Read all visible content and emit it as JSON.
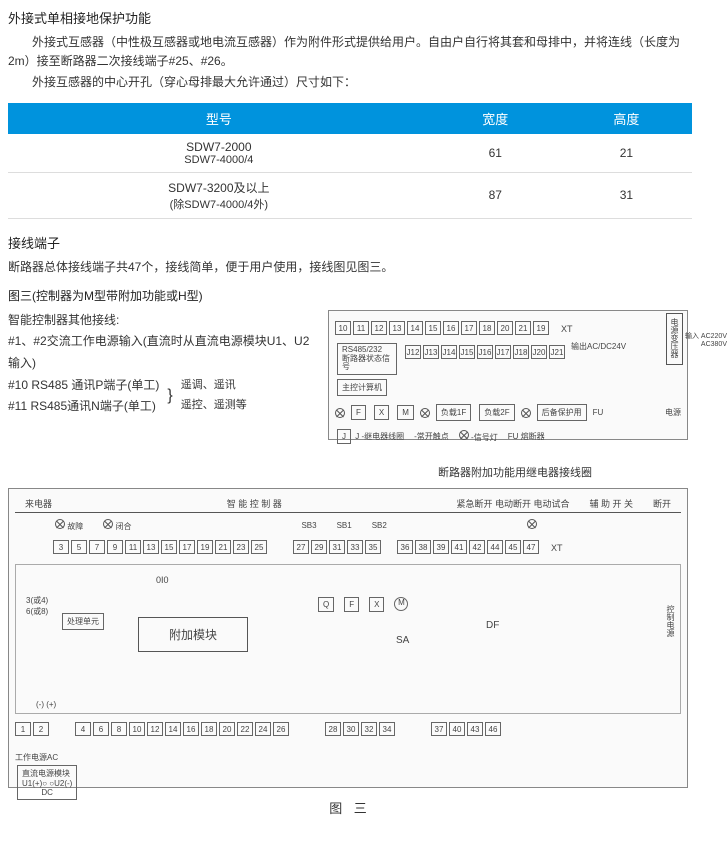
{
  "section1": {
    "title": "外接式单相接地保护功能",
    "para1": "外接式互感器（中性极互感器或地电流互感器）作为附件形式提供给用户。自由户自行将其套和母排中，并将连线（长度为2m）接至断路器二次接线端子#25、#26。",
    "para2": "外接互感器的中心开孔（穿心母排最大允许通过）尺寸如下："
  },
  "table1": {
    "headers": [
      "型号",
      "宽度",
      "高度"
    ],
    "rows": [
      {
        "model": "SDW7-2000",
        "sub": "SDW7-4000/4",
        "width": "61",
        "height": "21"
      },
      {
        "model": "SDW7-3200及以上",
        "sub": "(除SDW7-4000/4外)",
        "width": "87",
        "height": "31"
      }
    ]
  },
  "section2": {
    "title": "接线端子",
    "para1": "断路器总体接线端子共47个，接线简单，便于用户使用，接线图见图三。"
  },
  "diagram_upper": {
    "title": "图三(控制器为M型带附加功能或H型)",
    "left_lines": [
      "智能控制器其他接线:",
      "#1、#2交流工作电源输入(直流时从直流电源模块U1、U2输入)",
      "#10 RS485 通讯P端子(单工)",
      "#11 RS485通讯N端子(单工)"
    ],
    "left_extra": "遥调、遥讯\n遥控、遥测等",
    "terminals_top": [
      "10",
      "11",
      "12",
      "13",
      "14",
      "15",
      "16",
      "17",
      "18",
      "20",
      "21",
      "19"
    ],
    "xt_label": "XT",
    "terminals_j": [
      "J12",
      "J13",
      "J14",
      "J15",
      "J16",
      "J17",
      "J18",
      "J20",
      "J21"
    ],
    "rs485_label": "RS485/232\n断路器状态信号",
    "output_label": "输出AC/DC24V",
    "input_label": "输入 AC220V\nAC380V",
    "transformer": "电源变压器",
    "computer": "主控计算机",
    "relay_row": [
      "F",
      "X",
      "M"
    ],
    "load_labels": [
      "负载1F",
      "负载2F",
      "后备保护用"
    ],
    "fu_label": "FU",
    "j_relay": "J -继电器线圈",
    "contact1": "-常开触点",
    "signal_lamp": "-信号灯",
    "fu_fuse": "FU 熔断器",
    "power": "电源",
    "sub_caption": "断路器附加功能用继电器接线圈"
  },
  "diagram_full": {
    "top_labels": [
      "来电器",
      "智 能 控 制 器",
      "紧急断开 电动断开 电动试合",
      "辅 助 开 关",
      "断开"
    ],
    "btn_labels": [
      "故障",
      "闭合"
    ],
    "sb_labels": [
      "SB3",
      "SB1",
      "SB2"
    ],
    "terminals_row1": [
      "3",
      "5",
      "7",
      "9",
      "11",
      "13",
      "15",
      "17",
      "19",
      "21",
      "23",
      "25"
    ],
    "terminals_group2": [
      "27",
      "29",
      "31",
      "33",
      "35"
    ],
    "terminals_group3": [
      "36",
      "38",
      "39",
      "41",
      "42",
      "44",
      "45",
      "47"
    ],
    "xt_label": "XT",
    "qfx_row": [
      "Q",
      "F",
      "X"
    ],
    "m_label": "M",
    "sa_label": "SA",
    "df_label": "DF",
    "control_power": "控制电源",
    "process_unit": "处理单元",
    "attach_module": "附加模块",
    "cfg_label": "3(或4)\n6(或8)",
    "io_label": "0I0",
    "pm_label": "(-)  (+)",
    "terminals_bottom1": [
      "1",
      "2"
    ],
    "terminals_bottom2": [
      "4",
      "6",
      "8",
      "10",
      "12",
      "14",
      "16",
      "18",
      "20",
      "22",
      "24",
      "26"
    ],
    "terminals_bottom3": [
      "28",
      "30",
      "32",
      "34"
    ],
    "terminals_bottom4": [
      "37",
      "40",
      "43",
      "46"
    ],
    "ac_label": "工作电源AC",
    "dc_module": "直流电源模块",
    "dc_ports": "U1(+)○ ○U2(-)",
    "dc_label": "DC"
  },
  "final_caption": "图 三",
  "colors": {
    "header_bg": "#0093dd",
    "header_fg": "#ffffff",
    "text": "#333333",
    "border": "#888888"
  }
}
